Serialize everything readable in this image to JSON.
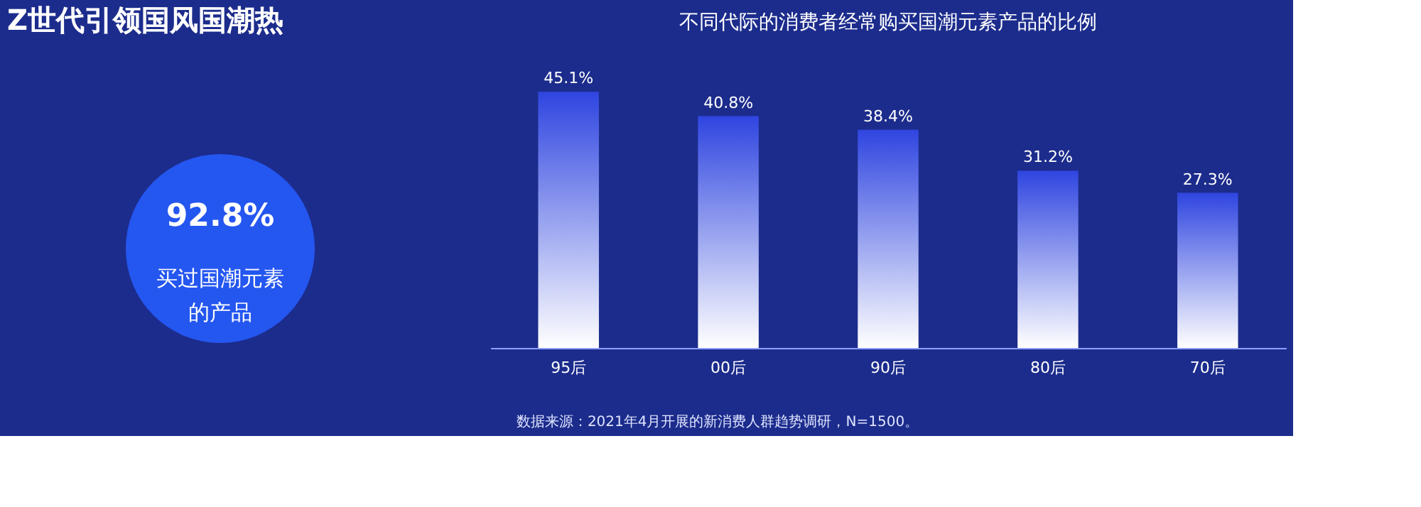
{
  "chart_data": [
    {
      "type": "other",
      "title": "Z世代引领国风国潮热",
      "annotations": [
        "92.8%",
        "买过国潮元素",
        "的产品"
      ]
    },
    {
      "type": "bar",
      "title": "不同代际的消费者经常购买国潮元素产品的比例",
      "categories": [
        "95后",
        "00后",
        "90后",
        "80后",
        "70后"
      ],
      "values": [
        45.1,
        40.8,
        38.4,
        31.2,
        27.3
      ],
      "value_labels": [
        "45.1%",
        "40.8%",
        "38.4%",
        "31.2%",
        "27.3%"
      ],
      "color": "#2f45e0",
      "grid": false,
      "annotations": [
        "数据来源：2021年4月开展的新消费人群趋势调研，N=1500。"
      ]
    }
  ]
}
